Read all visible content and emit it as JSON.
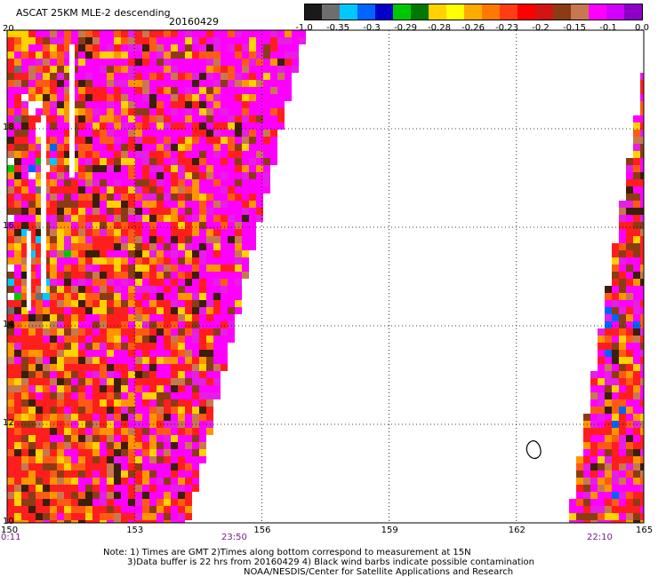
{
  "header": {
    "title": "ASCAT 25KM MLE-2 descending",
    "date": "20160429"
  },
  "colorbar": {
    "labels": [
      "-1.0",
      "-0.35",
      "-0.3",
      "-0.29",
      "-0.28",
      "-0.26",
      "-0.23",
      "-0.2",
      "-0.15",
      "-0.1",
      "0.0"
    ],
    "colors": [
      "#1a1a1a",
      "#6e6e6e",
      "#00c8ff",
      "#0064ff",
      "#0000c8",
      "#00c800",
      "#007800",
      "#ffd200",
      "#ffff00",
      "#ffaa00",
      "#ff7800",
      "#ff3c14",
      "#ff0000",
      "#d21414",
      "#8c3c14",
      "#c87850",
      "#ff00ff",
      "#d200ff",
      "#8c00c8"
    ]
  },
  "map": {
    "lon_ticks": [
      "150",
      "153",
      "156",
      "159",
      "162",
      "165"
    ],
    "lat_ticks": [
      "20",
      "18",
      "16",
      "14",
      "12",
      "10"
    ],
    "times": [
      "0:11",
      "23:50",
      "22:10"
    ],
    "palette": [
      "#ff00ff",
      "#e61ee6",
      "#ff1e1e",
      "#ff5a14",
      "#ff9600",
      "#ffd200",
      "#8c3c14",
      "#c87850",
      "#3c1e0a",
      "#00c800",
      "#0064ff",
      "#00c8ff",
      "#6e6e6e",
      "#1a1a1a"
    ]
  },
  "notes": [
    "Note: 1) Times are GMT 2)Times along bottom correspond to measurement at 15N",
    "3)Data buffer is 22 hrs from 20160429 4) Black wind barbs indicate possible contamination",
    "NOAA/NESDIS/Center for Satellite Applications and Research"
  ]
}
